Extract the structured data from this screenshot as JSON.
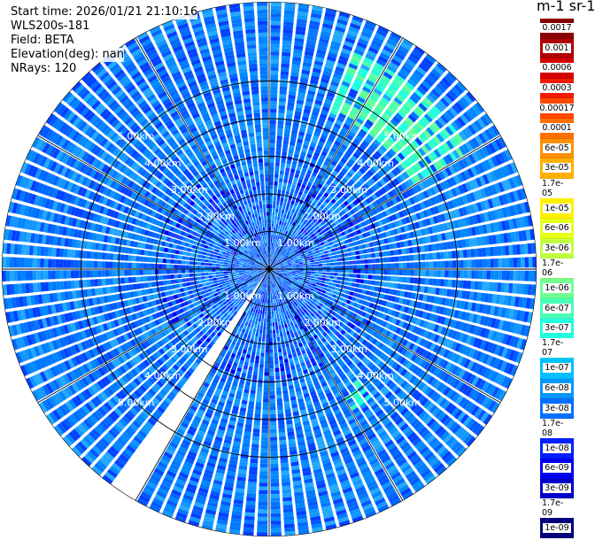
{
  "header": {
    "start_time": "Start time: 2026/01/21 21:10:16",
    "instrument": "WLS200s-181",
    "field": "Field: BETA",
    "elevation": "Elevation(deg): nan",
    "nrays": "NRays: 120"
  },
  "colorbar": {
    "title": "m-1 sr-1",
    "labels": [
      "0.0017",
      "0.001",
      "0.0006",
      "0.0003",
      "0.00017",
      "0.0001",
      "6e-05",
      "3e-05",
      "1.7e-05",
      "1e-05",
      "6e-06",
      "3e-06",
      "1.7e-06",
      "1e-06",
      "6e-07",
      "3e-07",
      "1.7e-07",
      "1e-07",
      "6e-08",
      "3e-08",
      "1.7e-08",
      "1e-08",
      "6e-09",
      "3e-09",
      "1.7e-09",
      "1e-09"
    ],
    "colors": [
      "#8b0000",
      "#b00000",
      "#d60000",
      "#f21c00",
      "#ff4800",
      "#ff6e00",
      "#ff9100",
      "#ffb000",
      "#ffd000",
      "#fff000",
      "#e8ff18",
      "#c0ff40",
      "#98ff68",
      "#70ff90",
      "#48ffb8",
      "#20ffe0",
      "#00e8ff",
      "#00c0ff",
      "#0098ff",
      "#0070ff",
      "#0048ff",
      "#0020ff",
      "#0000f0",
      "#0000c8",
      "#0000a0",
      "#000078"
    ]
  },
  "chart_data": {
    "type": "ppi",
    "field": "BETA",
    "units": "m-1 sr-1",
    "nrays": 120,
    "range_rings_km": [
      1,
      2,
      3,
      4,
      5
    ],
    "ring_labels": [
      "1.00km",
      "2.00km",
      "3.00km",
      "4.00km",
      "5.00km"
    ],
    "max_range_km": 7.1,
    "missing_azimuth_deg": [
      210,
      215
    ],
    "typical_beta": 3e-08,
    "enhanced_beta_region": {
      "azimuth_deg": [
        20,
        60
      ],
      "range_km": [
        4.5,
        6.2
      ],
      "beta": 1.7e-07
    },
    "enhanced_beta_region_2": {
      "azimuth_deg": [
        140,
        150
      ],
      "range_km": [
        3.8,
        4.5
      ],
      "beta": 1.7e-07
    }
  }
}
